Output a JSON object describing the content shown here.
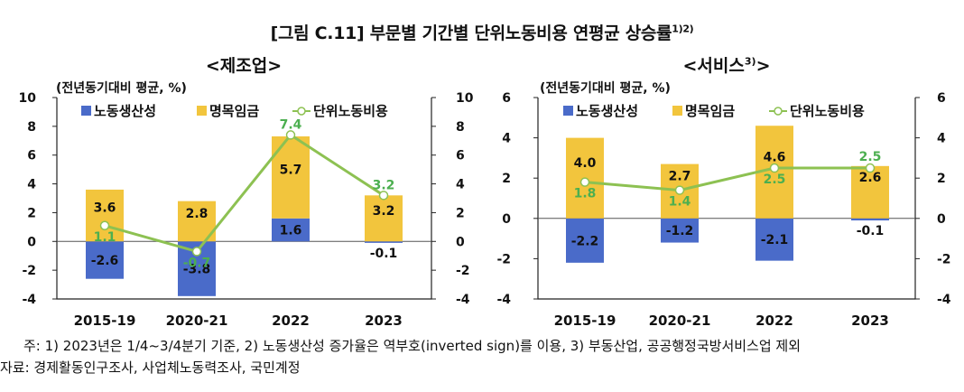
{
  "figure_title": "[그림 C.11] 부문별 기간별 단위노동비용 연평균 상승률",
  "figure_title_sup": "1)2)",
  "notes": {
    "line1": "주: 1) 2023년은 1/4~3/4분기 기준,  2) 노동생산성 증가율은 역부호(inverted sign)를 이용,  3) 부동산업, 공공행정국방서비스업 제외",
    "line2": "자료: 경제활동인구조사, 사업체노동력조사, 국민계정"
  },
  "colors": {
    "productivity": "#4a6bc9",
    "wage": "#f2c53d",
    "ulc": "#8dc152"
  },
  "chart_data": [
    {
      "type": "bar",
      "stacked": true,
      "title": "<제조업>",
      "title_sup": "",
      "ylabel": "(전년동기대비 평균, %)",
      "categories": [
        "2015-19",
        "2020-21",
        "2022",
        "2023"
      ],
      "ylim": [
        -4,
        10
      ],
      "yticks": [
        -4,
        -2,
        0,
        2,
        4,
        6,
        8,
        10
      ],
      "legend": [
        "노동생산성",
        "명목임금",
        "단위노동비용"
      ],
      "legend_position": "top",
      "series": [
        {
          "name": "노동생산성",
          "type": "bar",
          "values": [
            -2.6,
            -3.8,
            1.6,
            -0.1
          ]
        },
        {
          "name": "명목임금",
          "type": "bar",
          "values": [
            3.6,
            2.8,
            5.7,
            3.2
          ]
        },
        {
          "name": "단위노동비용",
          "type": "line",
          "values": [
            1.1,
            -0.7,
            7.4,
            3.2
          ]
        }
      ]
    },
    {
      "type": "bar",
      "stacked": true,
      "title": "<서비스",
      "title_sup": "3)",
      "title_end": ">",
      "ylabel": "(전년동기대비 평균, %)",
      "categories": [
        "2015-19",
        "2020-21",
        "2022",
        "2023"
      ],
      "ylim": [
        -4,
        6
      ],
      "yticks": [
        -4,
        -2,
        0,
        2,
        4,
        6
      ],
      "legend": [
        "노동생산성",
        "명목임금",
        "단위노동비용"
      ],
      "legend_position": "top",
      "series": [
        {
          "name": "노동생산성",
          "type": "bar",
          "values": [
            -2.2,
            -1.2,
            -2.1,
            -0.1
          ]
        },
        {
          "name": "명목임금",
          "type": "bar",
          "values": [
            4.0,
            2.7,
            4.6,
            2.6
          ]
        },
        {
          "name": "단위노동비용",
          "type": "line",
          "values": [
            1.8,
            1.4,
            2.5,
            2.5
          ]
        }
      ]
    }
  ]
}
